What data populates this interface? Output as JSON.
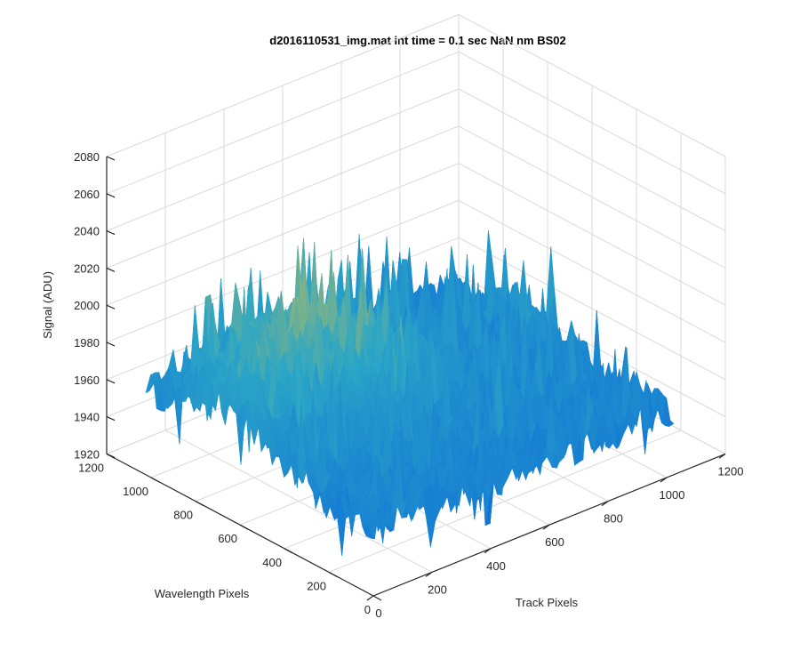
{
  "chart_data": {
    "type": "surface",
    "title": "d2016110531_img.mat int time = 0.1 sec  NaN nm BS02",
    "xlabel": "Track Pixels",
    "ylabel": "Wavelength Pixels",
    "zlabel": "Signal (ADU)",
    "xlim": [
      0,
      1200
    ],
    "ylim": [
      0,
      1200
    ],
    "zlim": [
      1920,
      2080
    ],
    "xticks": [
      "0",
      "200",
      "400",
      "600",
      "800",
      "1000",
      "1200"
    ],
    "yticks": [
      "0",
      "200",
      "400",
      "600",
      "800",
      "1000",
      "1200"
    ],
    "zticks": [
      "1920",
      "1940",
      "1960",
      "1980",
      "2000",
      "2020",
      "2040",
      "2060",
      "2080"
    ],
    "grid": true,
    "colormap": "parula",
    "data_extent": {
      "x": [
        0,
        1024
      ],
      "y": [
        0,
        1024
      ]
    },
    "surface_summary": {
      "baseline_signal": 1955,
      "noise_range": [
        1930,
        2070
      ],
      "high_region_center": {
        "track": 300,
        "wavelength": 700
      }
    },
    "colors": {
      "low": "#0f6fd8",
      "mid": "#2ba6c6",
      "high": "#e8c23a",
      "grid": "#d9d9d9",
      "axis": "#262626"
    }
  }
}
